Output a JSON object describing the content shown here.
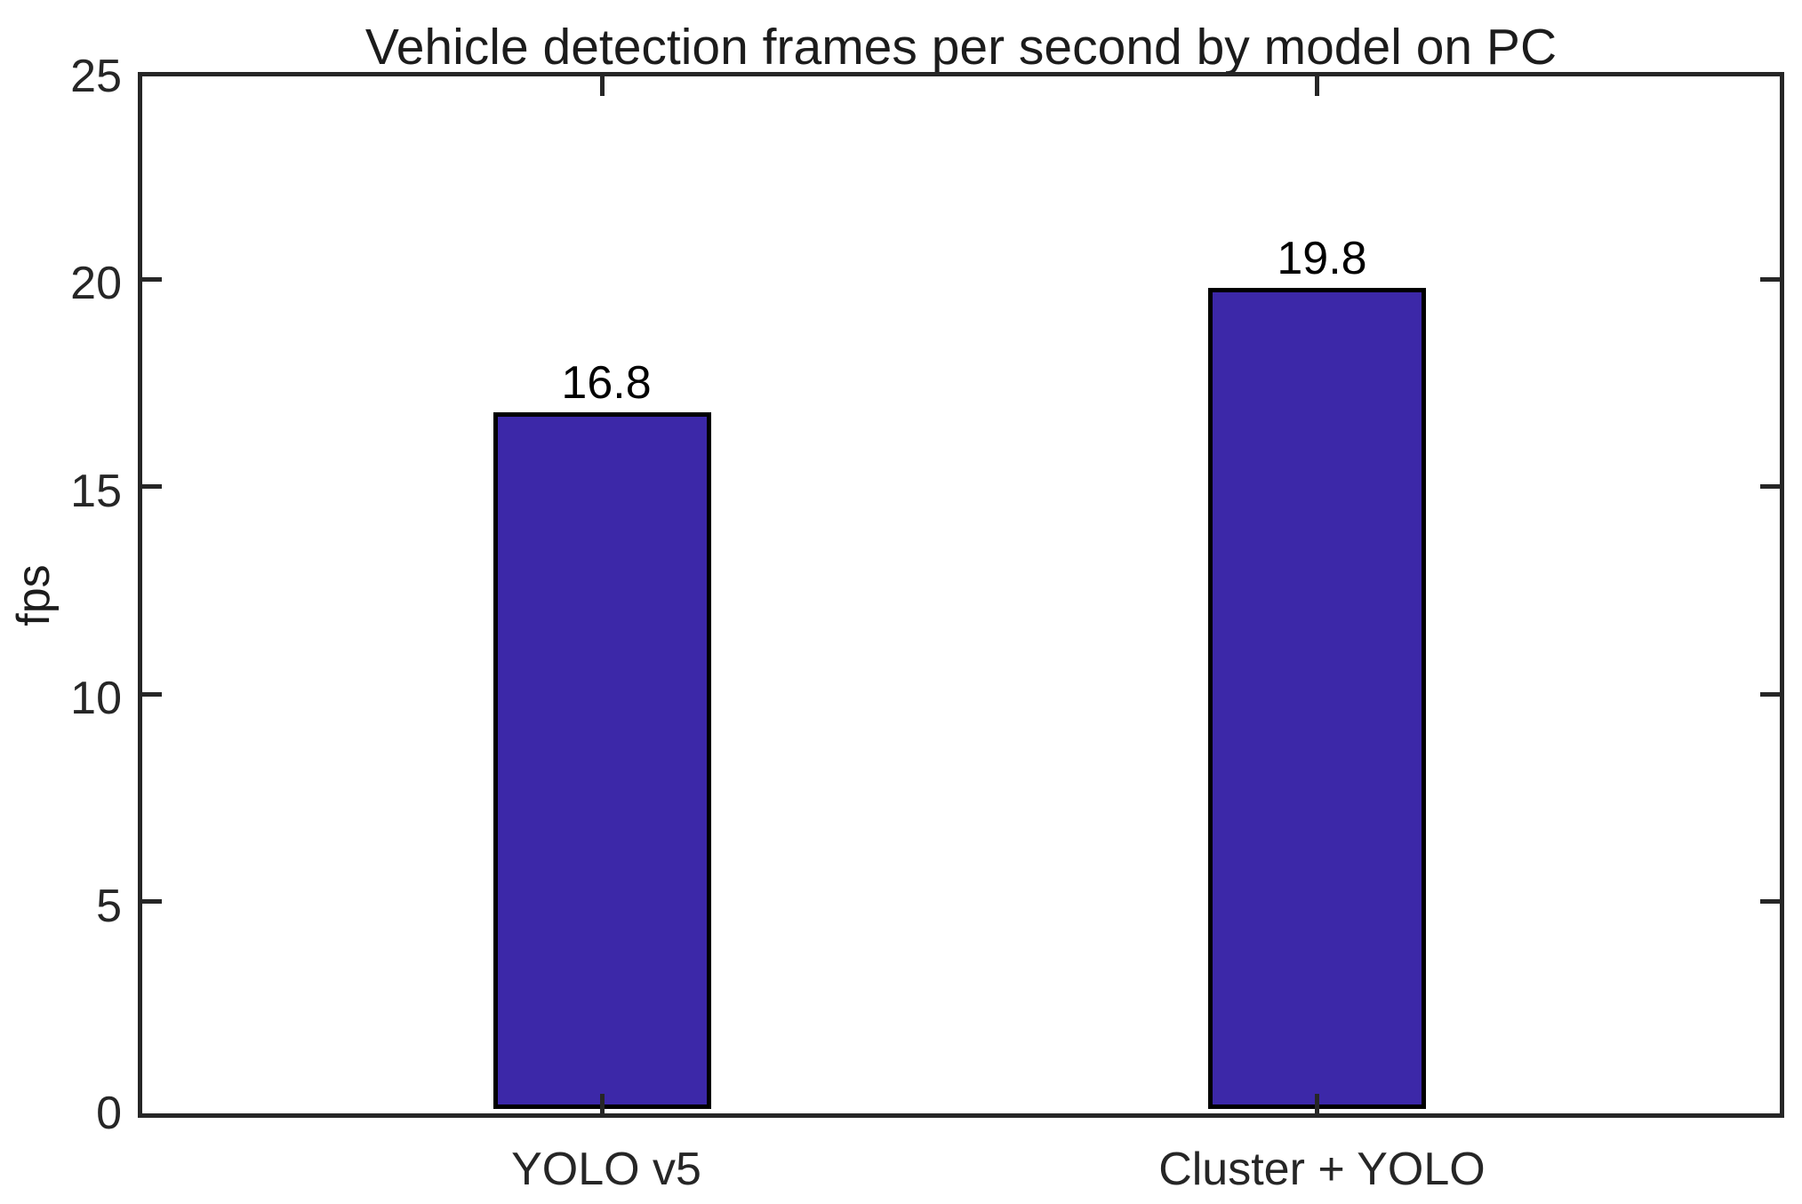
{
  "chart_data": {
    "type": "bar",
    "title": "Vehicle detection frames per second by model on PC",
    "xlabel": "",
    "ylabel": "fps",
    "categories": [
      "YOLO v5",
      "Cluster + YOLO"
    ],
    "values": [
      16.8,
      19.8
    ],
    "value_labels": [
      "16.8",
      "19.8"
    ],
    "ylim": [
      0,
      25
    ],
    "yticks": [
      0,
      5,
      10,
      15,
      20,
      25
    ],
    "grid": "off",
    "legend": "none",
    "bar_color": "#3C28A8",
    "bar_edge_color": "#000000",
    "axis_color": "#262626",
    "background_color": "#ffffff"
  }
}
